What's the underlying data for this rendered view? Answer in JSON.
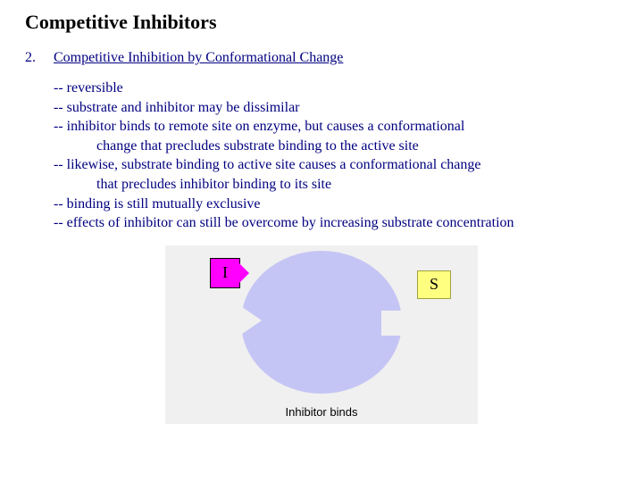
{
  "title": "Competitive Inhibitors",
  "section": {
    "number": "2.",
    "heading": "Competitive Inhibition by Conformational Change"
  },
  "bullets": {
    "b1": "-- reversible",
    "b2": "-- substrate and inhibitor may be dissimilar",
    "b3": "-- inhibitor binds to remote site on enzyme, but causes a conformational",
    "b3_sub": "change that precludes substrate binding to the active site",
    "b4": "-- likewise, substrate binding to active site causes a conformational change",
    "b4_sub": "that precludes inhibitor binding to its site",
    "b5": "-- binding is still mutually exclusive",
    "b6": "-- effects of inhibitor can still be overcome by increasing substrate concentration"
  },
  "diagram": {
    "i_label": "I",
    "s_label": "S",
    "caption": "Inhibitor binds",
    "colors": {
      "background": "#f0f0f0",
      "enzyme": "#c5c5f5",
      "inhibitor": "#ff00ff",
      "substrate": "#ffff80"
    }
  }
}
